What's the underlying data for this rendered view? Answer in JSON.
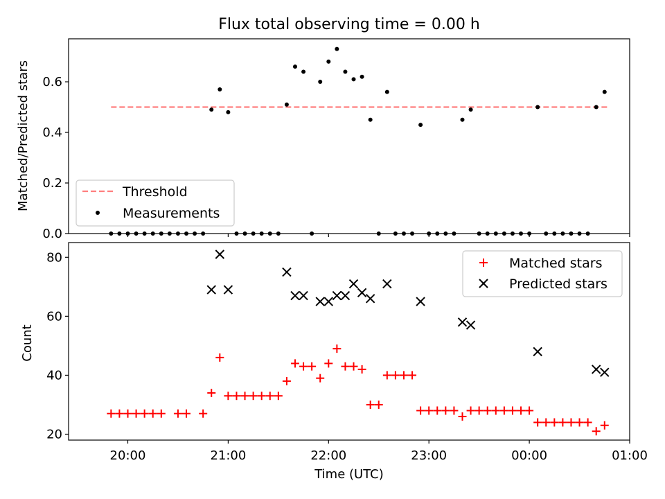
{
  "chart_data": [
    {
      "type": "scatter",
      "title": "Flux total observing time = 0.00 h",
      "ylabel": "Matched/Predicted stars",
      "ylim": [
        0,
        0.77
      ],
      "xlim_hours": [
        19.41,
        25.0
      ],
      "yticks": [
        0.0,
        0.2,
        0.4,
        0.6
      ],
      "ytick_labels": [
        "0.0",
        "0.2",
        "0.4",
        "0.6"
      ],
      "legend": {
        "placement": "lower-left",
        "entries": [
          "Threshold",
          "Measurements"
        ]
      },
      "threshold": {
        "name": "Threshold",
        "y": 0.5,
        "x_start": "19:50",
        "x_end": "00:47",
        "color": "#ff7f7f"
      },
      "series": [
        {
          "name": "Measurements",
          "color": "#000000",
          "x": [
            "19:50",
            "19:55",
            "20:00",
            "20:05",
            "20:10",
            "20:15",
            "20:20",
            "20:25",
            "20:30",
            "20:35",
            "20:40",
            "20:45",
            "20:50",
            "20:55",
            "21:00",
            "21:05",
            "21:10",
            "21:15",
            "21:20",
            "21:25",
            "21:30",
            "21:35",
            "21:40",
            "21:45",
            "21:50",
            "21:55",
            "22:00",
            "22:05",
            "22:10",
            "22:15",
            "22:20",
            "22:25",
            "22:30",
            "22:35",
            "22:40",
            "22:45",
            "22:50",
            "22:55",
            "23:00",
            "23:05",
            "23:10",
            "23:15",
            "23:20",
            "23:25",
            "23:30",
            "23:35",
            "23:40",
            "23:45",
            "23:50",
            "23:55",
            "00:00",
            "00:05",
            "00:10",
            "00:15",
            "00:20",
            "00:25",
            "00:30",
            "00:35",
            "00:40",
            "00:45"
          ],
          "y": [
            0,
            0,
            0,
            0,
            0,
            0,
            0,
            0,
            0,
            0,
            0,
            0,
            0.49,
            0.57,
            0.48,
            0,
            0,
            0,
            0,
            0,
            0,
            0.51,
            0.66,
            0.64,
            0,
            0.6,
            0.68,
            0.73,
            0.64,
            0.61,
            0.62,
            0.45,
            0,
            0.56,
            0,
            0,
            0,
            0.43,
            0,
            0,
            0,
            0,
            0.45,
            0.49,
            0,
            0,
            0,
            0,
            0,
            0,
            0,
            0.5,
            0,
            0,
            0,
            0,
            0,
            0,
            0.5,
            0.56
          ]
        }
      ]
    },
    {
      "type": "scatter",
      "xlabel": "Time (UTC)",
      "ylabel": "Count",
      "ylim": [
        18,
        85
      ],
      "xlim_hours": [
        19.41,
        25.0
      ],
      "yticks": [
        20,
        40,
        60,
        80
      ],
      "ytick_labels": [
        "20",
        "40",
        "60",
        "80"
      ],
      "xticks_hours": [
        20,
        21,
        22,
        23,
        24,
        25
      ],
      "xtick_labels": [
        "20:00",
        "21:00",
        "22:00",
        "23:00",
        "00:00",
        "01:00"
      ],
      "legend": {
        "placement": "top-right",
        "entries": [
          "Matched stars",
          "Predicted stars"
        ]
      },
      "series": [
        {
          "name": "Matched stars",
          "marker": "plus",
          "color": "#ff0000",
          "x": [
            "19:50",
            "19:55",
            "20:00",
            "20:05",
            "20:10",
            "20:15",
            "20:20",
            "20:30",
            "20:35",
            "20:45",
            "20:50",
            "20:55",
            "21:00",
            "21:05",
            "21:10",
            "21:15",
            "21:20",
            "21:25",
            "21:30",
            "21:35",
            "21:40",
            "21:45",
            "21:50",
            "21:55",
            "22:00",
            "22:05",
            "22:10",
            "22:15",
            "22:20",
            "22:25",
            "22:30",
            "22:35",
            "22:40",
            "22:45",
            "22:50",
            "22:55",
            "23:00",
            "23:05",
            "23:10",
            "23:15",
            "23:20",
            "23:25",
            "23:30",
            "23:35",
            "23:40",
            "23:45",
            "23:50",
            "23:55",
            "00:00",
            "00:05",
            "00:10",
            "00:15",
            "00:20",
            "00:25",
            "00:30",
            "00:35",
            "00:40",
            "00:45"
          ],
          "y": [
            27,
            27,
            27,
            27,
            27,
            27,
            27,
            27,
            27,
            27,
            34,
            46,
            33,
            33,
            33,
            33,
            33,
            33,
            33,
            38,
            44,
            43,
            43,
            39,
            44,
            49,
            43,
            43,
            42,
            30,
            30,
            40,
            40,
            40,
            40,
            28,
            28,
            28,
            28,
            28,
            26,
            28,
            28,
            28,
            28,
            28,
            28,
            28,
            28,
            24,
            24,
            24,
            24,
            24,
            24,
            24,
            21,
            23
          ]
        },
        {
          "name": "Predicted stars",
          "marker": "x",
          "color": "#000000",
          "x": [
            "20:50",
            "20:55",
            "21:00",
            "21:35",
            "21:40",
            "21:45",
            "21:55",
            "22:00",
            "22:05",
            "22:10",
            "22:15",
            "22:20",
            "22:25",
            "22:35",
            "22:55",
            "23:20",
            "23:25",
            "00:05",
            "00:40",
            "00:45"
          ],
          "y": [
            69,
            81,
            69,
            75,
            67,
            67,
            65,
            65,
            67,
            67,
            71,
            68,
            66,
            71,
            65,
            58,
            57,
            48,
            42,
            41
          ]
        }
      ]
    }
  ]
}
